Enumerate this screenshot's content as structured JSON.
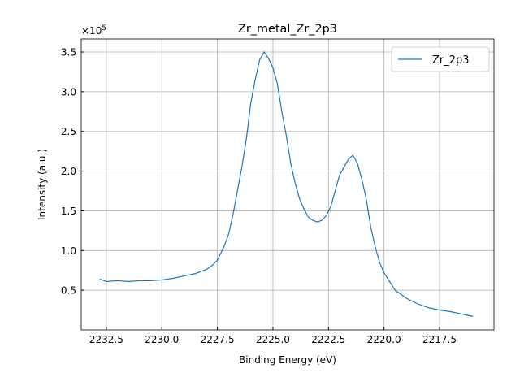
{
  "chart_data": {
    "type": "line",
    "title": "Zr_metal_Zr_2p3",
    "xlabel": "Binding Energy (eV)",
    "ylabel": "Intensity (a.u.)",
    "y_offset_label": {
      "base": "×10",
      "exponent": "5"
    },
    "x": [
      2232.8,
      2232.5,
      2232.0,
      2231.5,
      2231.0,
      2230.5,
      2230.0,
      2229.5,
      2229.0,
      2228.5,
      2228.0,
      2227.7,
      2227.5,
      2227.2,
      2227.0,
      2226.8,
      2226.6,
      2226.4,
      2226.2,
      2226.0,
      2225.8,
      2225.6,
      2225.4,
      2225.2,
      2225.0,
      2224.8,
      2224.6,
      2224.4,
      2224.2,
      2224.0,
      2223.8,
      2223.6,
      2223.4,
      2223.2,
      2223.0,
      2222.8,
      2222.6,
      2222.4,
      2222.2,
      2222.0,
      2221.8,
      2221.6,
      2221.4,
      2221.2,
      2221.0,
      2220.8,
      2220.6,
      2220.4,
      2220.2,
      2220.0,
      2219.5,
      2219.0,
      2218.5,
      2218.0,
      2217.5,
      2217.0,
      2216.5,
      2216.0
    ],
    "series": [
      {
        "name": "Zr_2p3",
        "color": "#1f77b4",
        "values": [
          0.64,
          0.61,
          0.62,
          0.61,
          0.62,
          0.62,
          0.63,
          0.65,
          0.68,
          0.71,
          0.76,
          0.82,
          0.88,
          1.05,
          1.2,
          1.45,
          1.75,
          2.05,
          2.4,
          2.85,
          3.15,
          3.4,
          3.5,
          3.42,
          3.3,
          3.1,
          2.75,
          2.45,
          2.1,
          1.85,
          1.65,
          1.52,
          1.42,
          1.38,
          1.36,
          1.38,
          1.44,
          1.55,
          1.75,
          1.95,
          2.05,
          2.15,
          2.2,
          2.1,
          1.9,
          1.65,
          1.3,
          1.05,
          0.85,
          0.72,
          0.5,
          0.4,
          0.33,
          0.28,
          0.25,
          0.23,
          0.2,
          0.17
        ]
      }
    ],
    "xlim": [
      2233.63,
      2215.05
    ],
    "xticks": [
      2232.5,
      {
        "value": 2230,
        "label": "2230.0"
      },
      2227.5,
      {
        "value": 2225,
        "label": "2225.0"
      },
      2222.5,
      {
        "value": 2220,
        "label": "2220.0"
      },
      2217.5
    ],
    "ylim": [
      0,
      3.664
    ],
    "yticks": [
      0.5,
      {
        "value": 1,
        "label": "1.0"
      },
      1.5,
      {
        "value": 2,
        "label": "2.0"
      },
      2.5,
      {
        "value": 3,
        "label": "3.0"
      },
      3.5
    ],
    "grid": true,
    "legend": "upper right"
  }
}
